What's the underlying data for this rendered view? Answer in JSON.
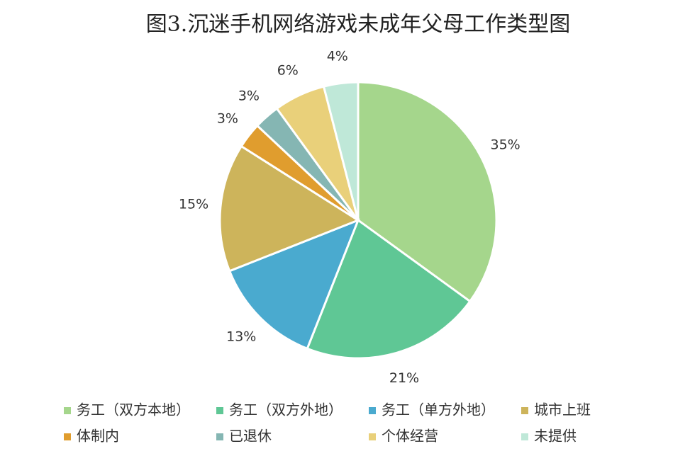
{
  "chart_data": {
    "type": "pie",
    "title": "图3.沉迷手机网络游戏未成年父母工作类型图",
    "categories": [
      "务工（双方本地）",
      "务工（双方外地）",
      "务工（单方外地）",
      "城市上班",
      "体制内",
      "已退休",
      "个体经营",
      "未提供"
    ],
    "values": [
      35,
      21,
      13,
      15,
      3,
      3,
      6,
      4
    ],
    "value_labels": [
      "35%",
      "21%",
      "13%",
      "15%",
      "3%",
      "3%",
      "6%",
      "4%"
    ],
    "colors": [
      "#a5d68c",
      "#5fc795",
      "#4aaacf",
      "#cdb45b",
      "#e09d2e",
      "#85b6b3",
      "#e9d07a",
      "#bfe8d8"
    ],
    "legend": "bottom"
  }
}
